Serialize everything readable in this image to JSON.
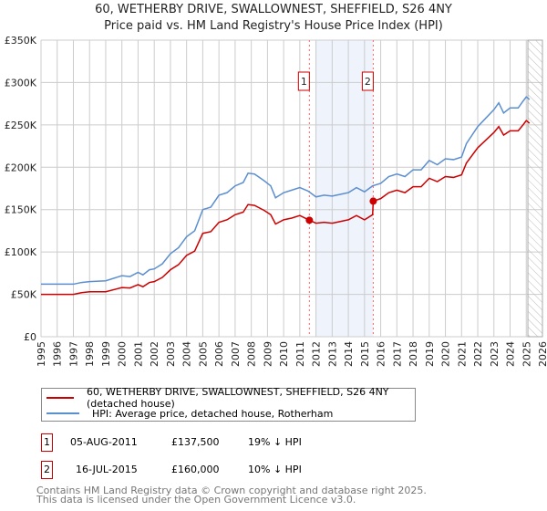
{
  "title": "60, WETHERBY DRIVE, SWALLOWNEST, SHEFFIELD, S26 4NY",
  "subtitle": "Price paid vs. HM Land Registry's House Price Index (HPI)",
  "chart_data": {
    "type": "line",
    "title": "60, WETHERBY DRIVE, SWALLOWNEST, SHEFFIELD, S26 4NY",
    "subtitle": "Price paid vs. HM Land Registry's House Price Index (HPI)",
    "xlim": [
      1995,
      2026
    ],
    "ylim": [
      0,
      350000
    ],
    "yticks": [
      0,
      50000,
      100000,
      150000,
      200000,
      250000,
      300000,
      350000
    ],
    "ytick_labels": [
      "£0",
      "£50K",
      "£100K",
      "£150K",
      "£200K",
      "£250K",
      "£300K",
      "£350K"
    ],
    "xticks": [
      "1995",
      "1996",
      "1997",
      "1998",
      "1999",
      "2000",
      "2001",
      "2002",
      "2003",
      "2004",
      "2005",
      "2006",
      "2007",
      "2008",
      "2009",
      "2010",
      "2011",
      "2012",
      "2013",
      "2014",
      "2015",
      "2016",
      "2017",
      "2018",
      "2019",
      "2020",
      "2021",
      "2022",
      "2023",
      "2024",
      "2025",
      "2026"
    ],
    "grid": true,
    "shaded_range": [
      2011.95,
      2015.54
    ],
    "forecast_hatch_from": 2025.1,
    "series": [
      {
        "name": "60, WETHERBY DRIVE, SWALLOWNEST, SHEFFIELD, S26 4NY (detached house)",
        "color": "#cc0000",
        "x": [
          1995,
          1996,
          1997,
          1997.5,
          1998,
          1999,
          2000,
          2000.5,
          2001,
          2001.3,
          2001.7,
          2002,
          2002.5,
          2003,
          2003.5,
          2004,
          2004.5,
          2005,
          2005.5,
          2006,
          2006.5,
          2007,
          2007.5,
          2007.8,
          2008.2,
          2008.8,
          2009.2,
          2009.5,
          2010,
          2010.5,
          2011,
          2011.59,
          2012,
          2012.5,
          2013,
          2013.5,
          2014,
          2014.5,
          2015,
          2015.5,
          2015.54,
          2016,
          2016.5,
          2017,
          2017.5,
          2018,
          2018.5,
          2019,
          2019.5,
          2020,
          2020.5,
          2021,
          2021.3,
          2022,
          2022.5,
          2023,
          2023.3,
          2023.6,
          2024,
          2024.5,
          2024.8,
          2025,
          2025.2
        ],
        "y": [
          50000,
          50000,
          50000,
          52000,
          53000,
          53000,
          58000,
          57500,
          61500,
          59000,
          64000,
          65000,
          70000,
          79000,
          85000,
          96000,
          101000,
          122000,
          124000,
          135000,
          138000,
          144000,
          147000,
          156000,
          155000,
          149000,
          144000,
          133000,
          138000,
          140000,
          143000,
          137500,
          134000,
          135000,
          134000,
          136000,
          138000,
          143000,
          138000,
          144000,
          160000,
          163000,
          170000,
          173000,
          170000,
          177000,
          177000,
          187000,
          183000,
          189000,
          188000,
          191000,
          205000,
          223000,
          232000,
          241000,
          248000,
          238000,
          243000,
          243000,
          250000,
          255000,
          252000
        ]
      },
      {
        "name": "HPI: Average price, detached house, Rotherham",
        "color": "#5b8fd0",
        "x": [
          1995,
          1996,
          1997,
          1997.5,
          1998,
          1999,
          2000,
          2000.5,
          2001,
          2001.3,
          2001.7,
          2002,
          2002.5,
          2003,
          2003.5,
          2004,
          2004.5,
          2005,
          2005.5,
          2006,
          2006.5,
          2007,
          2007.5,
          2007.8,
          2008.2,
          2008.8,
          2009.2,
          2009.5,
          2010,
          2010.5,
          2011,
          2011.5,
          2012,
          2012.5,
          2013,
          2013.5,
          2014,
          2014.5,
          2015,
          2015.5,
          2016,
          2016.5,
          2017,
          2017.5,
          2018,
          2018.5,
          2019,
          2019.5,
          2020,
          2020.5,
          2021,
          2021.3,
          2022,
          2022.5,
          2023,
          2023.3,
          2023.6,
          2024,
          2024.5,
          2024.8,
          2025,
          2025.2
        ],
        "y": [
          62000,
          62000,
          62000,
          64000,
          65000,
          66000,
          72000,
          71000,
          76000,
          73000,
          79000,
          80000,
          86000,
          98000,
          105000,
          118000,
          125000,
          150000,
          153000,
          167000,
          170000,
          178000,
          182000,
          193000,
          192000,
          184000,
          178000,
          164000,
          170000,
          173000,
          176000,
          172000,
          165000,
          167000,
          166000,
          168000,
          170000,
          176000,
          171000,
          178000,
          181000,
          189000,
          192000,
          189000,
          197000,
          197000,
          208000,
          203000,
          210000,
          209000,
          212000,
          228000,
          248000,
          258000,
          268000,
          276000,
          264000,
          270000,
          270000,
          278000,
          283000,
          280000
        ]
      }
    ],
    "annotations": [
      {
        "label": "1",
        "x": 2011.59,
        "y": 137500
      },
      {
        "label": "2",
        "x": 2015.54,
        "y": 160000
      }
    ]
  },
  "legend": {
    "items": [
      {
        "label": "60, WETHERBY DRIVE, SWALLOWNEST, SHEFFIELD, S26 4NY (detached house)",
        "color": "#cc0000"
      },
      {
        "label": "HPI: Average price, detached house, Rotherham",
        "color": "#5b8fd0"
      }
    ]
  },
  "transactions": [
    {
      "num": "1",
      "date": "05-AUG-2011",
      "price": "£137,500",
      "hpi": "19% ↓ HPI"
    },
    {
      "num": "2",
      "date": "16-JUL-2015",
      "price": "£160,000",
      "hpi": "10% ↓ HPI"
    }
  ],
  "footer": [
    "Contains HM Land Registry data © Crown copyright and database right 2025.",
    "This data is licensed under the Open Government Licence v3.0."
  ]
}
